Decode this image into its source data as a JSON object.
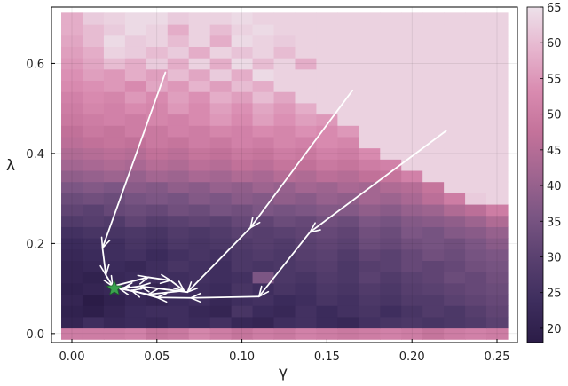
{
  "chart_data": {
    "type": "heatmap",
    "title": "",
    "xlabel": "γ",
    "ylabel": "λ",
    "xlim": [
      -0.012,
      0.262
    ],
    "ylim": [
      -0.02,
      0.725
    ],
    "x_ticks": [
      0.0,
      0.05,
      0.1,
      0.15,
      0.2,
      0.25
    ],
    "x_tick_labels": [
      "0.00",
      "0.05",
      "0.10",
      "0.15",
      "0.20",
      "0.25"
    ],
    "y_ticks": [
      0.0,
      0.2,
      0.4,
      0.6
    ],
    "y_tick_labels": [
      "0.0",
      "0.2",
      "0.4",
      "0.6"
    ],
    "grid": true,
    "colorbar": {
      "min": 18,
      "max": 65,
      "ticks": [
        20,
        25,
        30,
        35,
        40,
        45,
        50,
        55,
        60,
        65
      ],
      "tick_labels": [
        "20",
        "25",
        "30",
        "35",
        "40",
        "45",
        "50",
        "55",
        "60",
        "65"
      ],
      "colors": [
        "#2b1c47",
        "#3e2e5e",
        "#59406f",
        "#7a5583",
        "#a06590",
        "#c3729a",
        "#d98bb0",
        "#e6b5ce",
        "#ede1ea"
      ]
    },
    "grid_x": {
      "start": 0.0,
      "step": 0.0125,
      "count": 21
    },
    "grid_y": {
      "start": 0.0,
      "step": 0.025,
      "count": 29
    },
    "values": [
      [
        50,
        50,
        50,
        51,
        48,
        49,
        52,
        50,
        48,
        50,
        49,
        51,
        50,
        49,
        50,
        51,
        50,
        48,
        50,
        51,
        50
      ],
      [
        21,
        24,
        22,
        23,
        22,
        24,
        23,
        25,
        22,
        21,
        24,
        25,
        23,
        22,
        25,
        26,
        27,
        26,
        27,
        28,
        30
      ],
      [
        20,
        19,
        21,
        23,
        24,
        24,
        22,
        21,
        26,
        23,
        22,
        25,
        23,
        25,
        26,
        24,
        26,
        28,
        27,
        29,
        31
      ],
      [
        21,
        18,
        20,
        22,
        21,
        23,
        24,
        22,
        24,
        25,
        23,
        24,
        26,
        25,
        27,
        26,
        28,
        28,
        30,
        31,
        32
      ],
      [
        20,
        21,
        22,
        23,
        21,
        25,
        24,
        23,
        26,
        24,
        26,
        25,
        27,
        26,
        28,
        27,
        29,
        30,
        31,
        32,
        33
      ],
      [
        21,
        20,
        22,
        23,
        24,
        24,
        25,
        24,
        25,
        36,
        27,
        26,
        28,
        27,
        30,
        28,
        30,
        31,
        33,
        32,
        34
      ],
      [
        21,
        22,
        23,
        22,
        24,
        26,
        25,
        24,
        27,
        26,
        27,
        28,
        29,
        27,
        29,
        30,
        32,
        31,
        32,
        34,
        35
      ],
      [
        22,
        23,
        24,
        25,
        23,
        25,
        26,
        25,
        27,
        28,
        27,
        29,
        30,
        28,
        31,
        30,
        32,
        34,
        33,
        35,
        36
      ],
      [
        23,
        24,
        24,
        26,
        25,
        27,
        26,
        27,
        28,
        29,
        28,
        30,
        31,
        30,
        33,
        32,
        34,
        35,
        34,
        36,
        38
      ],
      [
        25,
        26,
        26,
        27,
        26,
        28,
        27,
        28,
        30,
        29,
        30,
        31,
        32,
        31,
        34,
        33,
        36,
        35,
        37,
        38,
        40
      ],
      [
        28,
        29,
        28,
        31,
        29,
        30,
        31,
        30,
        32,
        31,
        33,
        32,
        34,
        33,
        36,
        35,
        37,
        38,
        39,
        41,
        44
      ],
      [
        31,
        30,
        32,
        33,
        32,
        34,
        33,
        35,
        34,
        36,
        35,
        36,
        37,
        37,
        39,
        38,
        40,
        41,
        44,
        46,
        50
      ],
      [
        33,
        34,
        33,
        35,
        36,
        35,
        37,
        36,
        38,
        37,
        39,
        38,
        40,
        39,
        42,
        41,
        43,
        46,
        50,
        62,
        63
      ],
      [
        36,
        37,
        36,
        38,
        37,
        39,
        38,
        40,
        39,
        41,
        40,
        42,
        41,
        43,
        42,
        44,
        45,
        48,
        63,
        63,
        63
      ],
      [
        39,
        40,
        41,
        40,
        42,
        41,
        43,
        42,
        44,
        43,
        45,
        44,
        46,
        45,
        47,
        48,
        51,
        63,
        63,
        63,
        63
      ],
      [
        42,
        43,
        44,
        43,
        45,
        44,
        46,
        45,
        47,
        46,
        48,
        47,
        49,
        48,
        50,
        51,
        63,
        63,
        63,
        63,
        63
      ],
      [
        44,
        45,
        46,
        45,
        47,
        46,
        48,
        47,
        49,
        48,
        50,
        49,
        51,
        50,
        53,
        63,
        63,
        63,
        63,
        63,
        63
      ],
      [
        46,
        47,
        48,
        47,
        49,
        48,
        50,
        49,
        51,
        50,
        52,
        51,
        53,
        52,
        63,
        63,
        63,
        63,
        63,
        63,
        63
      ],
      [
        47,
        49,
        48,
        50,
        49,
        51,
        50,
        52,
        51,
        53,
        52,
        54,
        53,
        55,
        63,
        63,
        63,
        63,
        63,
        63,
        63
      ],
      [
        49,
        50,
        51,
        50,
        52,
        51,
        53,
        55,
        53,
        56,
        54,
        56,
        55,
        63,
        63,
        63,
        63,
        63,
        63,
        63,
        63
      ],
      [
        50,
        52,
        51,
        53,
        52,
        55,
        53,
        56,
        54,
        57,
        55,
        58,
        63,
        63,
        63,
        63,
        63,
        63,
        63,
        63,
        63
      ],
      [
        51,
        53,
        52,
        55,
        53,
        56,
        54,
        58,
        56,
        60,
        57,
        63,
        63,
        63,
        63,
        63,
        63,
        63,
        63,
        63,
        63
      ],
      [
        53,
        54,
        55,
        53,
        57,
        55,
        59,
        56,
        60,
        58,
        63,
        63,
        63,
        63,
        63,
        63,
        63,
        63,
        63,
        63,
        63
      ],
      [
        54,
        56,
        55,
        58,
        56,
        60,
        57,
        62,
        58,
        64,
        63,
        63,
        63,
        63,
        63,
        63,
        63,
        63,
        63,
        63,
        63
      ],
      [
        55,
        57,
        60,
        58,
        62,
        58,
        63,
        58,
        64,
        60,
        63,
        58,
        63,
        63,
        63,
        63,
        63,
        63,
        63,
        63,
        63
      ],
      [
        56,
        58,
        63,
        62,
        60,
        62,
        58,
        63,
        61,
        63,
        60,
        63,
        63,
        63,
        63,
        63,
        63,
        63,
        63,
        63,
        63
      ],
      [
        57,
        60,
        64,
        62,
        63,
        60,
        63,
        58,
        64,
        63,
        62,
        63,
        63,
        63,
        63,
        63,
        63,
        63,
        63,
        63,
        63
      ],
      [
        58,
        60,
        62,
        64,
        63,
        58,
        63,
        60,
        63,
        64,
        63,
        63,
        63,
        63,
        63,
        63,
        63,
        63,
        63,
        63,
        63
      ],
      [
        58,
        62,
        63,
        64,
        64,
        62,
        63,
        63,
        64,
        63,
        63,
        63,
        63,
        63,
        63,
        63,
        63,
        63,
        63,
        63,
        63
      ]
    ],
    "trajectories": [
      [
        [
          0.055,
          0.58
        ],
        [
          0.018,
          0.19
        ],
        [
          0.02,
          0.13
        ],
        [
          0.024,
          0.105
        ],
        [
          0.045,
          0.125
        ],
        [
          0.058,
          0.118
        ],
        [
          0.066,
          0.095
        ],
        [
          0.045,
          0.087
        ],
        [
          0.028,
          0.1
        ]
      ],
      [
        [
          0.165,
          0.54
        ],
        [
          0.105,
          0.235
        ],
        [
          0.068,
          0.092
        ],
        [
          0.04,
          0.105
        ],
        [
          0.03,
          0.1
        ]
      ],
      [
        [
          0.22,
          0.45
        ],
        [
          0.14,
          0.225
        ],
        [
          0.11,
          0.082
        ],
        [
          0.07,
          0.079
        ],
        [
          0.05,
          0.08
        ],
        [
          0.035,
          0.096
        ]
      ]
    ],
    "optimum": {
      "x": 0.025,
      "y": 0.1,
      "color": "#3aa34e"
    }
  }
}
